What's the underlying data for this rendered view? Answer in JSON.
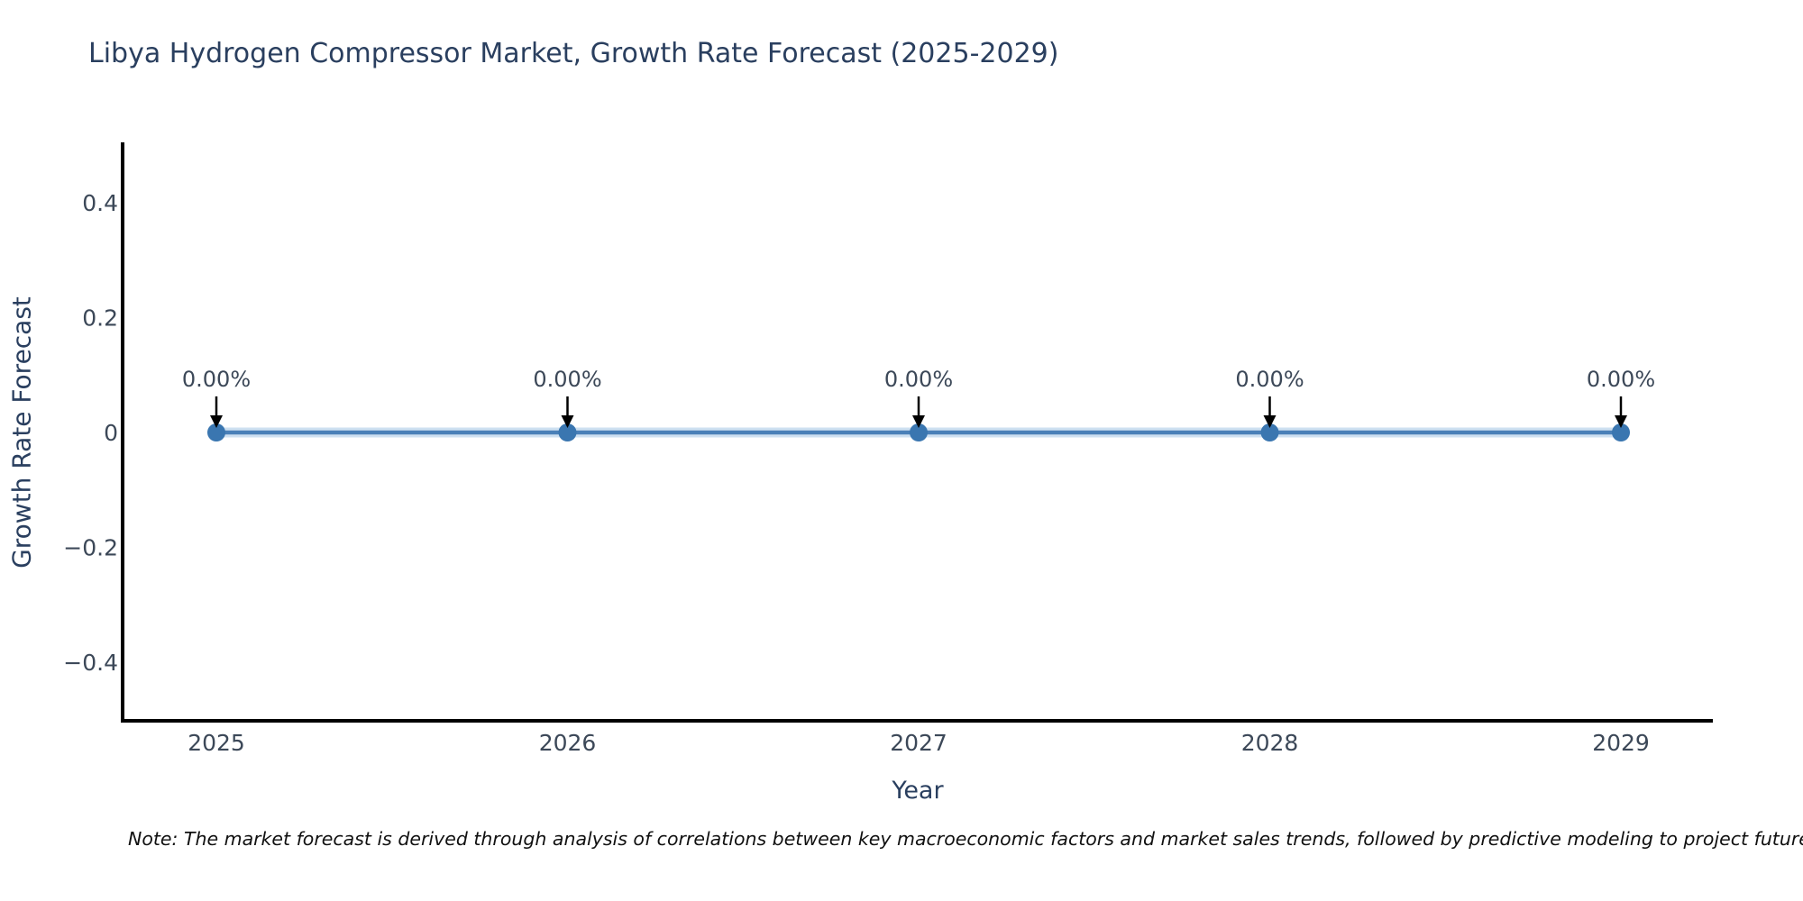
{
  "chart_data": {
    "type": "line",
    "title": "Libya Hydrogen Compressor Market, Growth Rate Forecast (2025-2029)",
    "xlabel": "Year",
    "ylabel": "Growth Rate Forecast",
    "x": [
      2025,
      2026,
      2027,
      2028,
      2029
    ],
    "series": [
      {
        "name": "Growth Rate Forecast",
        "values": [
          0,
          0,
          0,
          0,
          0
        ]
      }
    ],
    "point_labels": [
      "0.00%",
      "0.00%",
      "0.00%",
      "0.00%",
      "0.00%"
    ],
    "xticks": [
      "2025",
      "2026",
      "2027",
      "2028",
      "2029"
    ],
    "yticks": [
      {
        "value": 0.4,
        "label": "0.4"
      },
      {
        "value": 0.2,
        "label": "0.2"
      },
      {
        "value": 0,
        "label": "0"
      },
      {
        "value": -0.2,
        "label": "−0.2"
      },
      {
        "value": -0.4,
        "label": "−0.4"
      }
    ],
    "ylim": [
      -0.5,
      0.5
    ],
    "grid": false,
    "legend": "none",
    "note": "Note: The market forecast is derived through analysis of correlations between key macroeconomic factors and market sales trends, followed by predictive modeling to project future sa",
    "colors": {
      "line": "#4a80b8",
      "line_halo": "rgba(116,166,214,0.35)",
      "marker": "#3a76b0",
      "arrow": "#000000",
      "title_text": "#2a3f5f",
      "tick_text": "#3c4858",
      "axis": "#000000"
    }
  }
}
